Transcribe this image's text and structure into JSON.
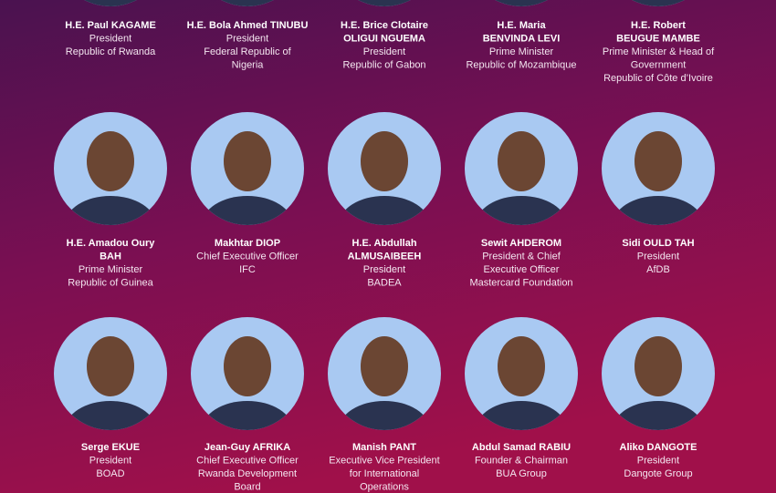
{
  "rows": [
    [
      {
        "name": [
          "H.E. Paul KAGAME"
        ],
        "details": [
          "President",
          "Republic of Rwanda"
        ]
      },
      {
        "name": [
          "H.E. Bola Ahmed TINUBU"
        ],
        "details": [
          "President",
          "Federal Republic of",
          "Nigeria"
        ]
      },
      {
        "name": [
          "H.E. Brice Clotaire",
          "OLIGUI NGUEMA"
        ],
        "details": [
          "President",
          "Republic of Gabon"
        ]
      },
      {
        "name": [
          "H.E. Maria",
          "BENVINDA LEVI"
        ],
        "details": [
          "Prime Minister",
          "Republic of Mozambique"
        ]
      },
      {
        "name": [
          "H.E. Robert",
          "BEUGUE MAMBE"
        ],
        "details": [
          "Prime Minister & Head of",
          "Government",
          "Republic of Côte d’Ivoire"
        ]
      }
    ],
    [
      {
        "name": [
          "H.E. Amadou Oury",
          "BAH"
        ],
        "details": [
          "Prime Minister",
          "Republic of Guinea"
        ]
      },
      {
        "name": [
          "Makhtar DIOP"
        ],
        "details": [
          "Chief Executive Officer",
          "IFC"
        ]
      },
      {
        "name": [
          "H.E. Abdullah",
          "ALMUSAIBEEH"
        ],
        "details": [
          "President",
          "BADEA"
        ]
      },
      {
        "name": [
          "Sewit AHDEROM"
        ],
        "details": [
          "President & Chief",
          "Executive Officer",
          "Mastercard Foundation"
        ]
      },
      {
        "name": [
          "Sidi OULD TAH"
        ],
        "details": [
          "President",
          "AfDB"
        ]
      }
    ],
    [
      {
        "name": [
          "Serge EKUE"
        ],
        "details": [
          "President",
          "BOAD"
        ]
      },
      {
        "name": [
          "Jean-Guy AFRIKA"
        ],
        "details": [
          "Chief Executive Officer",
          "Rwanda Development",
          "Board"
        ]
      },
      {
        "name": [
          "Manish PANT"
        ],
        "details": [
          "Executive Vice President",
          "for International",
          "Operations"
        ]
      },
      {
        "name": [
          "Abdul Samad RABIU"
        ],
        "details": [
          "Founder & Chairman",
          "BUA Group"
        ]
      },
      {
        "name": [
          "Aliko DANGOTE"
        ],
        "details": [
          "President",
          "Dangote Group"
        ]
      }
    ]
  ]
}
